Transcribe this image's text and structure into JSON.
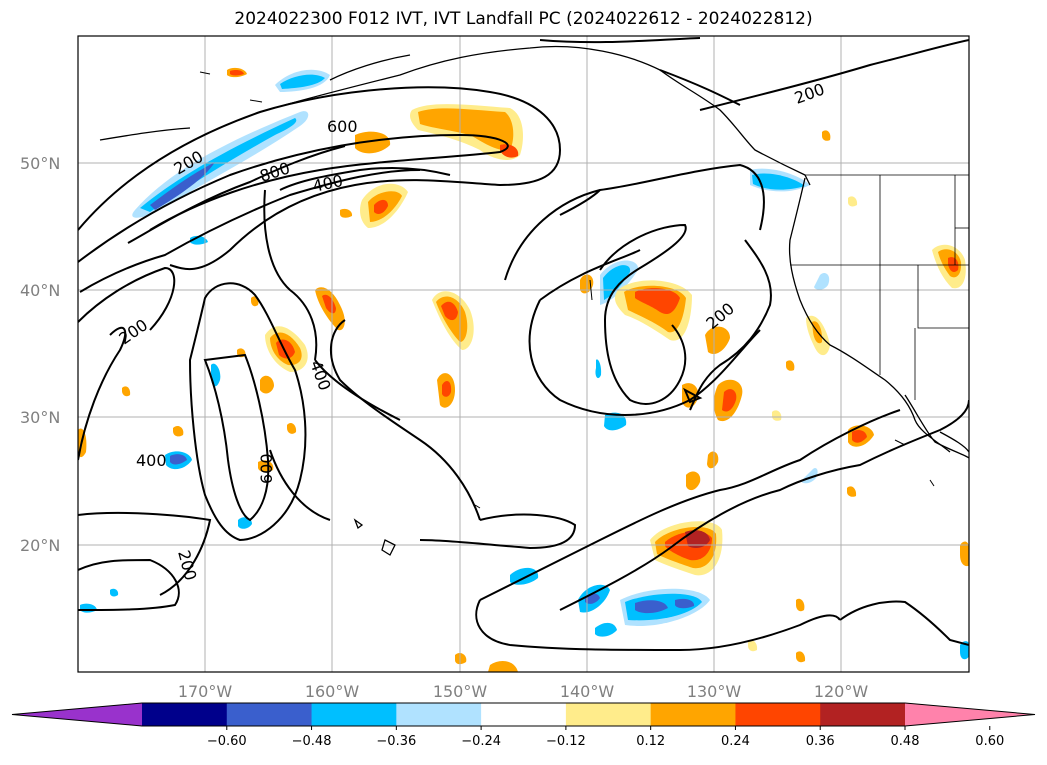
{
  "title": "2024022300 F012 IVT, IVT Landfall PC (2024022612 - 2024022812)",
  "map": {
    "lat_range": [
      10,
      60
    ],
    "lon_range": [
      -180,
      -110
    ],
    "lat_ticks": [
      "50°N",
      "40°N",
      "30°N",
      "20°N"
    ],
    "lon_ticks": [
      "170°W",
      "160°W",
      "150°W",
      "140°W",
      "130°W",
      "120°W"
    ],
    "grid": true,
    "ivt_contour_labels": [
      "200",
      "600",
      "800",
      "400",
      "200",
      "200",
      "400",
      "600",
      "400",
      "200"
    ]
  },
  "colorbar": {
    "ticks": [
      "−0.60",
      "−0.48",
      "−0.36",
      "−0.24",
      "−0.12",
      "0.12",
      "0.24",
      "0.36",
      "0.48",
      "0.60"
    ],
    "colors": [
      "#9932cc",
      "#00008b",
      "#3a5fcd",
      "#00bfff",
      "#b0e2ff",
      "#ffffff",
      "#ffec8b",
      "#ffa500",
      "#ff4500",
      "#b22222",
      "#ff82ab"
    ],
    "extend": "both"
  }
}
